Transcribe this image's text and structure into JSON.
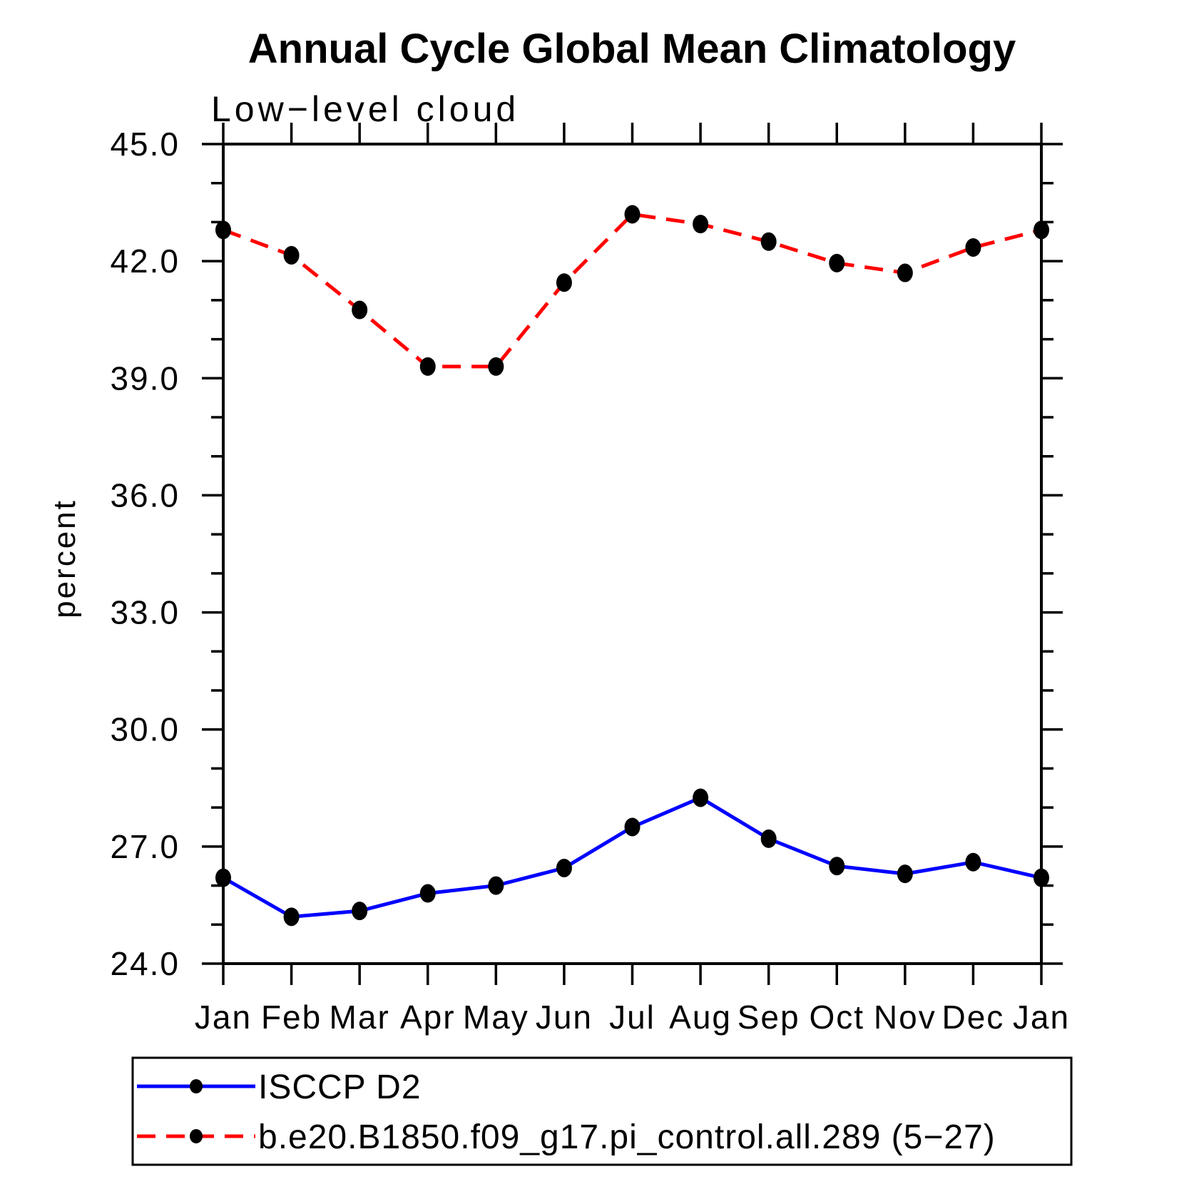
{
  "chart_data": {
    "type": "line",
    "title": "Annual Cycle Global Mean Climatology",
    "subtitle": "Low−level cloud",
    "xlabel": "",
    "ylabel": "percent",
    "ylim": [
      24.0,
      45.0
    ],
    "ytick_major_step": 3.0,
    "ytick_minor_step": 1.0,
    "ytick_labels": [
      "24.0",
      "27.0",
      "30.0",
      "33.0",
      "36.0",
      "39.0",
      "42.0",
      "45.0"
    ],
    "grid": false,
    "legend_position": "boxed legend below plot, bottom-left",
    "categories": [
      "Jan",
      "Feb",
      "Mar",
      "Apr",
      "May",
      "Jun",
      "Jul",
      "Aug",
      "Sep",
      "Oct",
      "Nov",
      "Dec",
      "Jan"
    ],
    "series": [
      {
        "name": "ISCCP D2",
        "color": "#0000ff",
        "line_style": "solid",
        "marker": "filled-circle",
        "marker_color": "#000000",
        "values": [
          26.2,
          25.2,
          25.35,
          25.8,
          26.0,
          26.45,
          27.5,
          28.25,
          27.2,
          26.5,
          26.3,
          26.6,
          26.2
        ]
      },
      {
        "name": "b.e20.B1850.f09_g17.pi_control.all.289 (5−27)",
        "color": "#ff0000",
        "line_style": "dashed",
        "marker": "filled-circle",
        "marker_color": "#000000",
        "values": [
          42.8,
          42.15,
          40.75,
          39.3,
          39.3,
          41.45,
          43.2,
          42.95,
          42.5,
          41.95,
          41.7,
          42.35,
          42.8
        ]
      }
    ],
    "axis_color": "#000000"
  }
}
